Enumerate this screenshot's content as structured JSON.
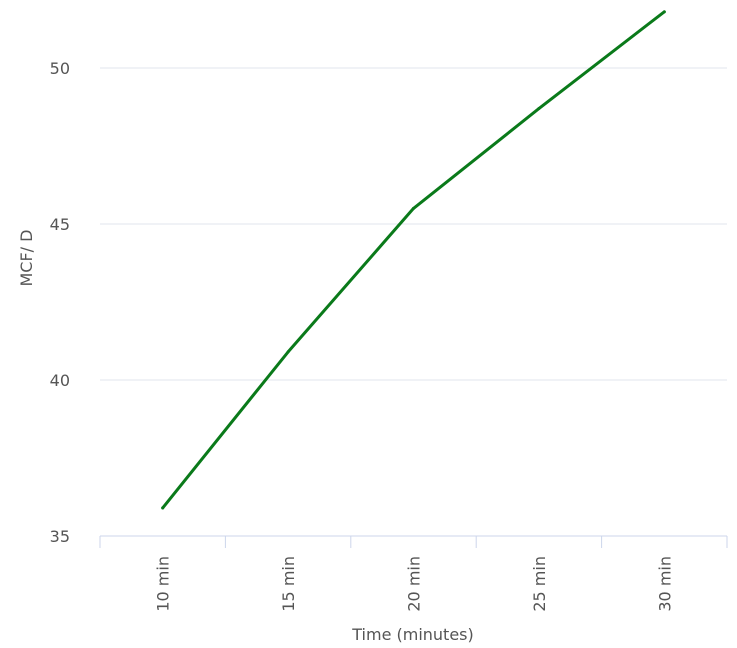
{
  "chart_data": {
    "type": "line",
    "categories": [
      "10 min",
      "15 min",
      "20 min",
      "25 min",
      "30 min"
    ],
    "series": [
      {
        "values": [
          35.9,
          40.9,
          45.5,
          48.7,
          51.8
        ]
      }
    ],
    "xlabel": "Time (minutes)",
    "ylabel": "MCF/ D",
    "yticks": [
      "35",
      "40",
      "45",
      "50"
    ],
    "ylim": [
      35,
      52
    ],
    "grid": "horizontal",
    "line_color": "#0a7a1a",
    "grid_color": "#e1e5ee",
    "axis_color": "#ccd6eb",
    "text_color": "#555555"
  }
}
